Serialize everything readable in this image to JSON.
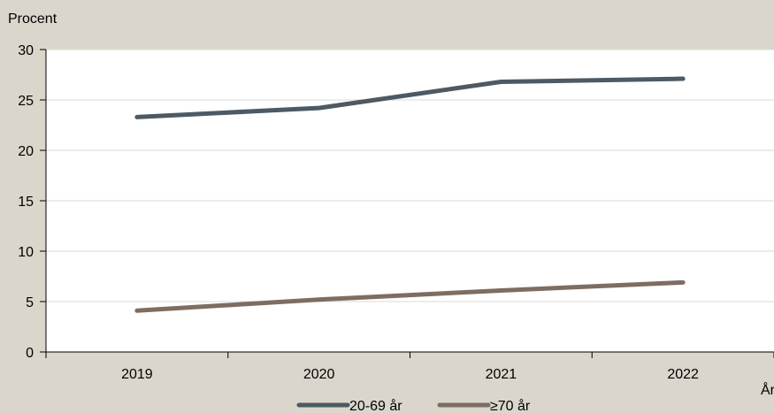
{
  "chart_data": {
    "type": "line",
    "categories": [
      "2019",
      "2020",
      "2021",
      "2022"
    ],
    "series": [
      {
        "name": "20-69 år",
        "values": [
          23.3,
          24.2,
          26.8,
          27.1
        ],
        "color": "#4d5a64"
      },
      {
        "name": "≥70 år",
        "values": [
          4.1,
          5.2,
          6.1,
          6.9
        ],
        "color": "#7d6d62"
      }
    ],
    "ylabel": "Procent",
    "xlabel": "År",
    "ylim": [
      0,
      30
    ],
    "yticks": [
      0,
      5,
      10,
      15,
      20,
      25,
      30
    ],
    "grid": true,
    "legend": "bottom"
  }
}
